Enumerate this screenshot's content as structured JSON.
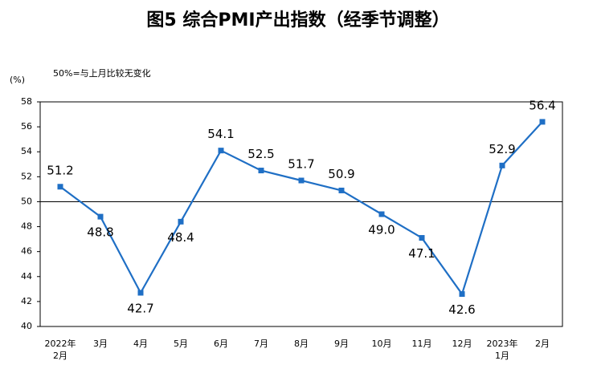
{
  "chart_data": {
    "type": "line",
    "title": "图5 综合PMI产出指数（经季节调整）",
    "y_unit": "(%)",
    "annotation": "50%=与上月比较无变化",
    "categories": [
      [
        "2022年",
        "2月"
      ],
      [
        "3月"
      ],
      [
        "4月"
      ],
      [
        "5月"
      ],
      [
        "6月"
      ],
      [
        "7月"
      ],
      [
        "8月"
      ],
      [
        "9月"
      ],
      [
        "10月"
      ],
      [
        "11月"
      ],
      [
        "12月"
      ],
      [
        "2023年",
        "1月"
      ],
      [
        "2月"
      ]
    ],
    "series": [
      {
        "name": "综合PMI产出指数",
        "color": "#1f6fc5",
        "values": [
          51.2,
          48.8,
          42.7,
          48.4,
          54.1,
          52.5,
          51.7,
          50.9,
          49.0,
          47.1,
          42.6,
          52.9,
          56.4
        ],
        "value_labels": [
          "51.2",
          "48.8",
          "42.7",
          "48.4",
          "54.1",
          "52.5",
          "51.7",
          "50.9",
          "49.0",
          "47.1",
          "42.6",
          "52.9",
          "56.4"
        ]
      }
    ],
    "reference_line": 50,
    "ylim": [
      40,
      58
    ],
    "yticks": [
      40,
      42,
      44,
      46,
      48,
      50,
      52,
      54,
      56,
      58
    ]
  }
}
